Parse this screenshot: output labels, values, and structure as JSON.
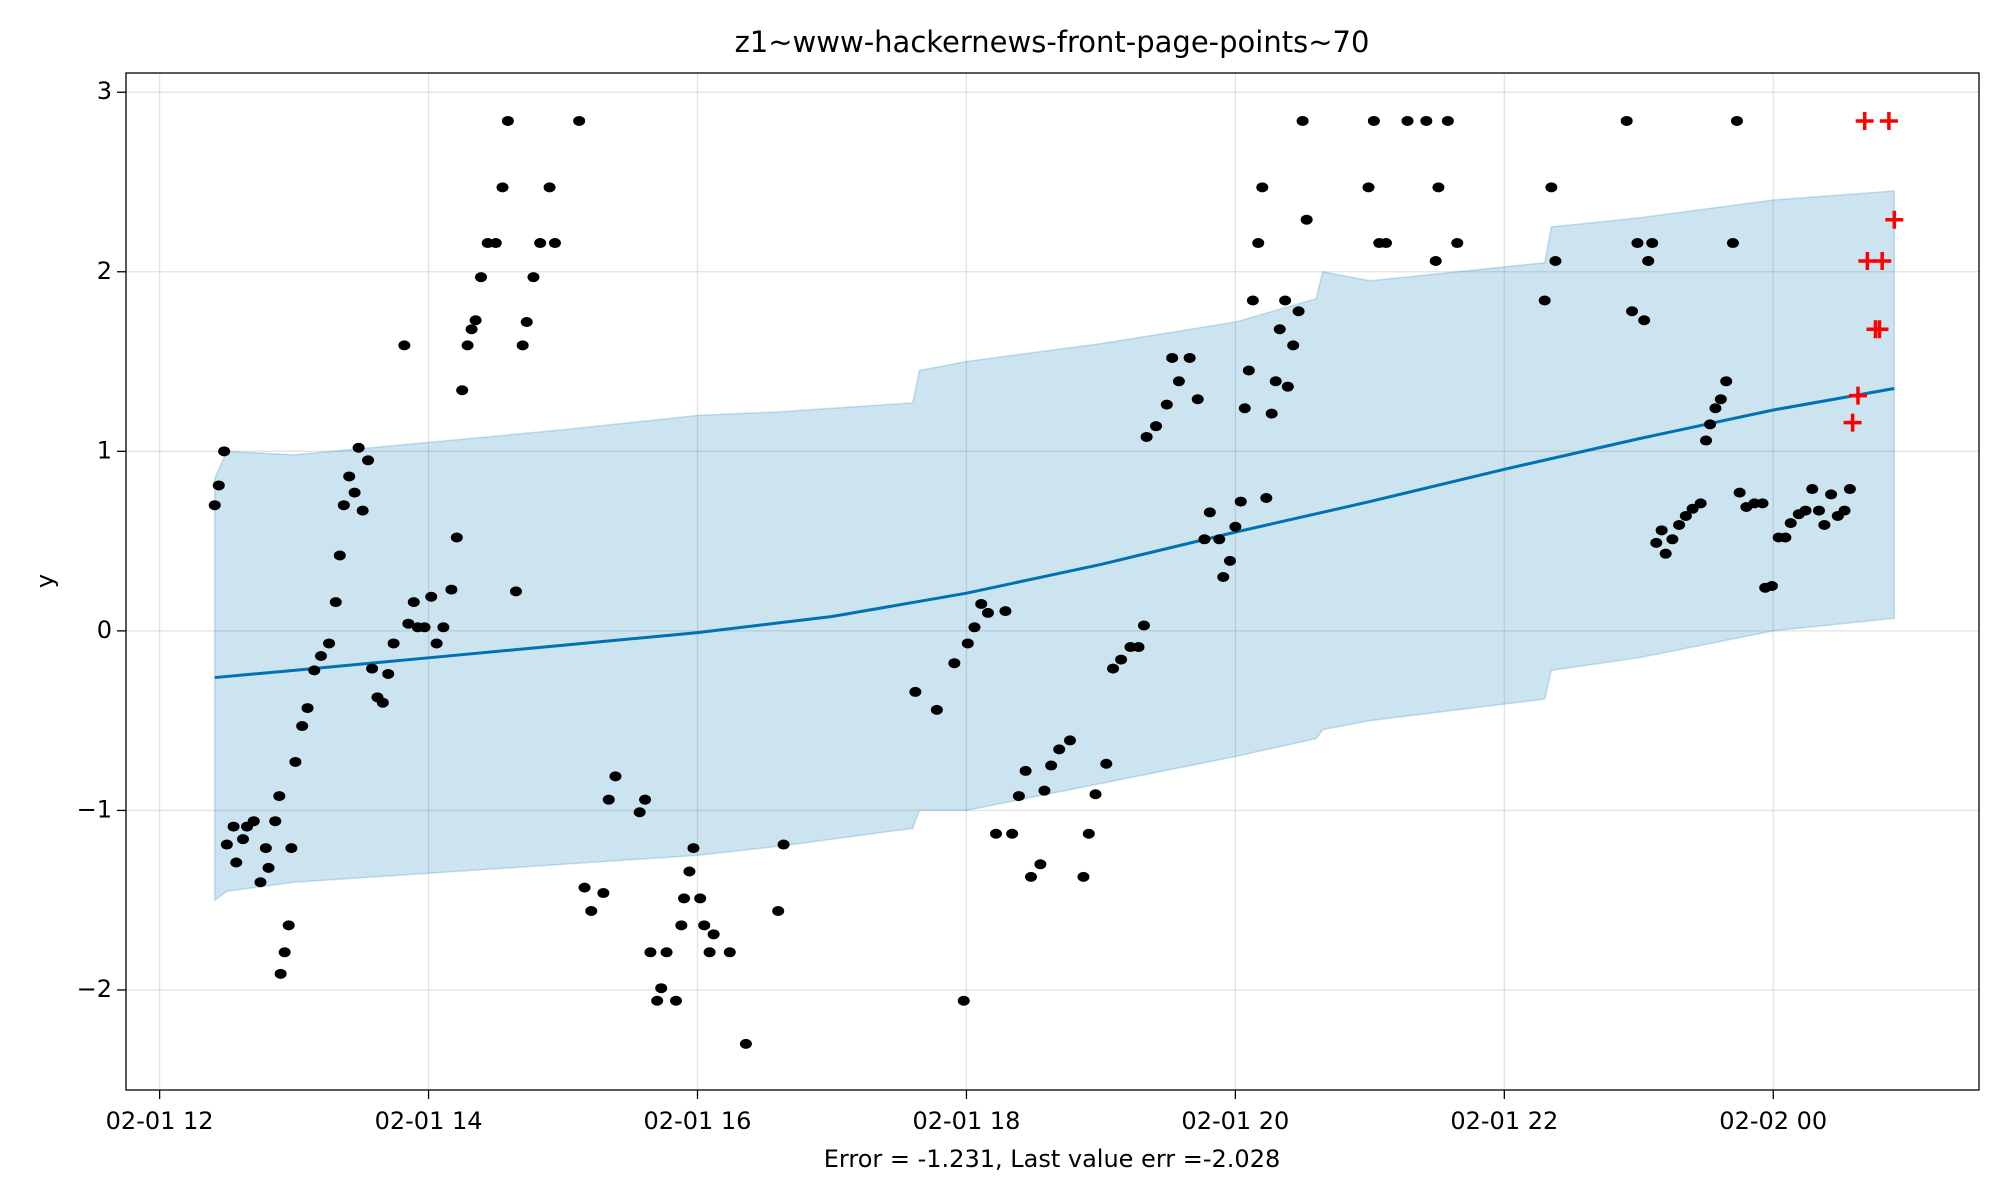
{
  "chart_data": {
    "type": "scatter",
    "title": "z1~www-hackernews-front-page-points~70",
    "xlabel": "Error = -1.231, Last value err =-2.028",
    "ylabel": "y",
    "xlim": [
      11.75,
      25.53
    ],
    "ylim": [
      -2.557,
      3.107
    ],
    "xticks": [
      {
        "value": 12,
        "label": "02-01 12"
      },
      {
        "value": 14,
        "label": "02-01 14"
      },
      {
        "value": 16,
        "label": "02-01 16"
      },
      {
        "value": 18,
        "label": "02-01 18"
      },
      {
        "value": 20,
        "label": "02-01 20"
      },
      {
        "value": 22,
        "label": "02-01 22"
      },
      {
        "value": 24,
        "label": "02-02 00"
      }
    ],
    "yticks": [
      {
        "value": -2,
        "label": "−2"
      },
      {
        "value": -1,
        "label": "−1"
      },
      0,
      1,
      2,
      3
    ],
    "grid": true,
    "series": [
      {
        "type": "band",
        "color": "#0072b2",
        "x": [
          12.41,
          12.5,
          13,
          14,
          15,
          16,
          16.6,
          17.6,
          17.65,
          18,
          19,
          20,
          20.6,
          20.65,
          21,
          22.3,
          22.35,
          23,
          24,
          24.9
        ],
        "upper": [
          0.85,
          1.0,
          0.98,
          1.05,
          1.12,
          1.2,
          1.22,
          1.27,
          1.45,
          1.5,
          1.6,
          1.72,
          1.85,
          2.0,
          1.95,
          2.05,
          2.25,
          2.3,
          2.4,
          2.45
        ],
        "lower": [
          -1.5,
          -1.45,
          -1.4,
          -1.35,
          -1.3,
          -1.25,
          -1.2,
          -1.1,
          -1.0,
          -1.0,
          -0.85,
          -0.7,
          -0.6,
          -0.55,
          -0.5,
          -0.38,
          -0.22,
          -0.15,
          0.0,
          0.07
        ]
      },
      {
        "type": "line",
        "color": "#0072b2",
        "x": [
          12.41,
          13,
          14,
          15,
          16,
          17,
          18,
          19,
          20,
          21,
          22,
          23,
          24,
          24.9
        ],
        "values": [
          -0.26,
          -0.22,
          -0.15,
          -0.08,
          -0.01,
          0.08,
          0.21,
          0.37,
          0.55,
          0.72,
          0.9,
          1.07,
          1.23,
          1.35
        ]
      },
      {
        "type": "scatter",
        "marker": "dot",
        "color": "#000000",
        "x": [
          12.41,
          12.44,
          12.48,
          12.5,
          12.55,
          12.57,
          12.62,
          12.65,
          12.7,
          12.75,
          12.79,
          12.81,
          12.86,
          12.89,
          12.9,
          12.93,
          12.96,
          12.98,
          13.01,
          13.06,
          13.1,
          13.15,
          13.2,
          13.26,
          13.31,
          13.34,
          13.37,
          13.41,
          13.45,
          13.48,
          13.51,
          13.55,
          13.58,
          13.62,
          13.66,
          13.7,
          13.74,
          13.82,
          13.85,
          13.89,
          13.92,
          13.97,
          14.02,
          14.06,
          14.11,
          14.17,
          14.21,
          14.25,
          14.29,
          14.32,
          14.35,
          14.39,
          14.44,
          14.5,
          14.55,
          14.59,
          14.65,
          14.7,
          14.73,
          14.78,
          14.83,
          14.9,
          14.94,
          15.12,
          15.16,
          15.21,
          15.3,
          15.34,
          15.39,
          15.57,
          15.61,
          15.65,
          15.7,
          15.73,
          15.77,
          15.84,
          15.88,
          15.9,
          15.94,
          15.97,
          16.02,
          16.05,
          16.09,
          16.12,
          16.24,
          16.36,
          16.6,
          16.64,
          17.62,
          17.78,
          17.91,
          17.98,
          18.01,
          18.06,
          18.11,
          18.16,
          18.22,
          18.29,
          18.34,
          18.39,
          18.44,
          18.48,
          18.55,
          18.58,
          18.63,
          18.69,
          18.77,
          18.87,
          18.91,
          18.96,
          19.04,
          19.09,
          19.15,
          19.22,
          19.28,
          19.32,
          19.34,
          19.41,
          19.49,
          19.53,
          19.58,
          19.66,
          19.72,
          19.77,
          19.81,
          19.88,
          19.91,
          19.96,
          20.0,
          20.04,
          20.07,
          20.1,
          20.13,
          20.17,
          20.2,
          20.23,
          20.27,
          20.3,
          20.33,
          20.37,
          20.39,
          20.43,
          20.47,
          20.5,
          20.53,
          20.99,
          21.03,
          21.07,
          21.12,
          21.28,
          21.42,
          21.49,
          21.51,
          21.58,
          21.65,
          22.3,
          22.35,
          22.38,
          22.91,
          22.95,
          22.99,
          23.04,
          23.07,
          23.1,
          23.13,
          23.17,
          23.2,
          23.25,
          23.3,
          23.35,
          23.4,
          23.46,
          23.5,
          23.53,
          23.57,
          23.61,
          23.65,
          23.7,
          23.73,
          23.75,
          23.8,
          23.86,
          23.92,
          23.94,
          23.99,
          24.04,
          24.09,
          24.13,
          24.19,
          24.24,
          24.29,
          24.34,
          24.38,
          24.43,
          24.48,
          24.53,
          24.57
        ],
        "values": [
          0.7,
          0.81,
          1.0,
          -1.19,
          -1.09,
          -1.29,
          -1.16,
          -1.09,
          -1.06,
          -1.4,
          -1.21,
          -1.32,
          -1.06,
          -0.92,
          -1.91,
          -1.79,
          -1.64,
          -1.21,
          -0.73,
          -0.53,
          -0.43,
          -0.22,
          -0.14,
          -0.07,
          0.16,
          0.42,
          0.7,
          0.86,
          0.77,
          1.02,
          0.67,
          0.95,
          -0.21,
          -0.37,
          -0.4,
          -0.24,
          -0.07,
          1.59,
          0.04,
          0.16,
          0.02,
          0.02,
          0.19,
          -0.07,
          0.02,
          0.23,
          0.52,
          1.34,
          1.59,
          1.68,
          1.73,
          1.97,
          2.16,
          2.16,
          2.47,
          2.84,
          0.22,
          1.59,
          1.72,
          1.97,
          2.16,
          2.47,
          2.16,
          2.84,
          -1.43,
          -1.56,
          -1.46,
          -0.94,
          -0.81,
          -1.01,
          -0.94,
          -1.79,
          -2.06,
          -1.99,
          -1.79,
          -2.06,
          -1.64,
          -1.49,
          -1.34,
          -1.21,
          -1.49,
          -1.64,
          -1.79,
          -1.69,
          -1.79,
          -2.3,
          -1.56,
          -1.19,
          -0.34,
          -0.44,
          -0.18,
          -2.06,
          -0.07,
          0.02,
          0.15,
          0.1,
          -1.13,
          0.11,
          -1.13,
          -0.92,
          -0.78,
          -1.37,
          -1.3,
          -0.89,
          -0.75,
          -0.66,
          -0.61,
          -1.37,
          -1.13,
          -0.91,
          -0.74,
          -0.21,
          -0.16,
          -0.09,
          -0.09,
          0.03,
          1.08,
          1.14,
          1.26,
          1.52,
          1.39,
          1.52,
          1.29,
          0.51,
          0.66,
          0.51,
          0.3,
          0.39,
          0.58,
          0.72,
          1.24,
          1.45,
          1.84,
          2.16,
          2.47,
          0.74,
          1.21,
          1.39,
          1.68,
          1.84,
          1.36,
          1.59,
          1.78,
          2.84,
          2.29,
          2.47,
          2.84,
          2.16,
          2.16,
          2.84,
          2.84,
          2.06,
          2.47,
          2.84,
          2.16,
          1.84,
          2.47,
          2.06,
          2.84,
          1.78,
          2.16,
          1.73,
          2.06,
          2.16,
          0.49,
          0.56,
          0.43,
          0.51,
          0.59,
          0.64,
          0.68,
          0.71,
          1.06,
          1.15,
          1.24,
          1.29,
          1.39,
          2.16,
          2.84,
          0.77,
          0.69,
          0.71,
          0.71,
          0.24,
          0.25,
          0.52,
          0.52,
          0.6,
          0.65,
          0.67,
          0.79,
          0.67,
          0.59,
          0.76,
          0.64,
          0.67,
          0.79
        ]
      },
      {
        "type": "scatter",
        "marker": "plus",
        "color": "#ff0000",
        "x": [
          24.59,
          24.63,
          24.68,
          24.7,
          24.76,
          24.79,
          24.81,
          24.86,
          24.9
        ],
        "values": [
          1.16,
          1.31,
          2.84,
          2.06,
          1.68,
          1.68,
          2.06,
          2.84,
          2.29
        ]
      }
    ]
  }
}
